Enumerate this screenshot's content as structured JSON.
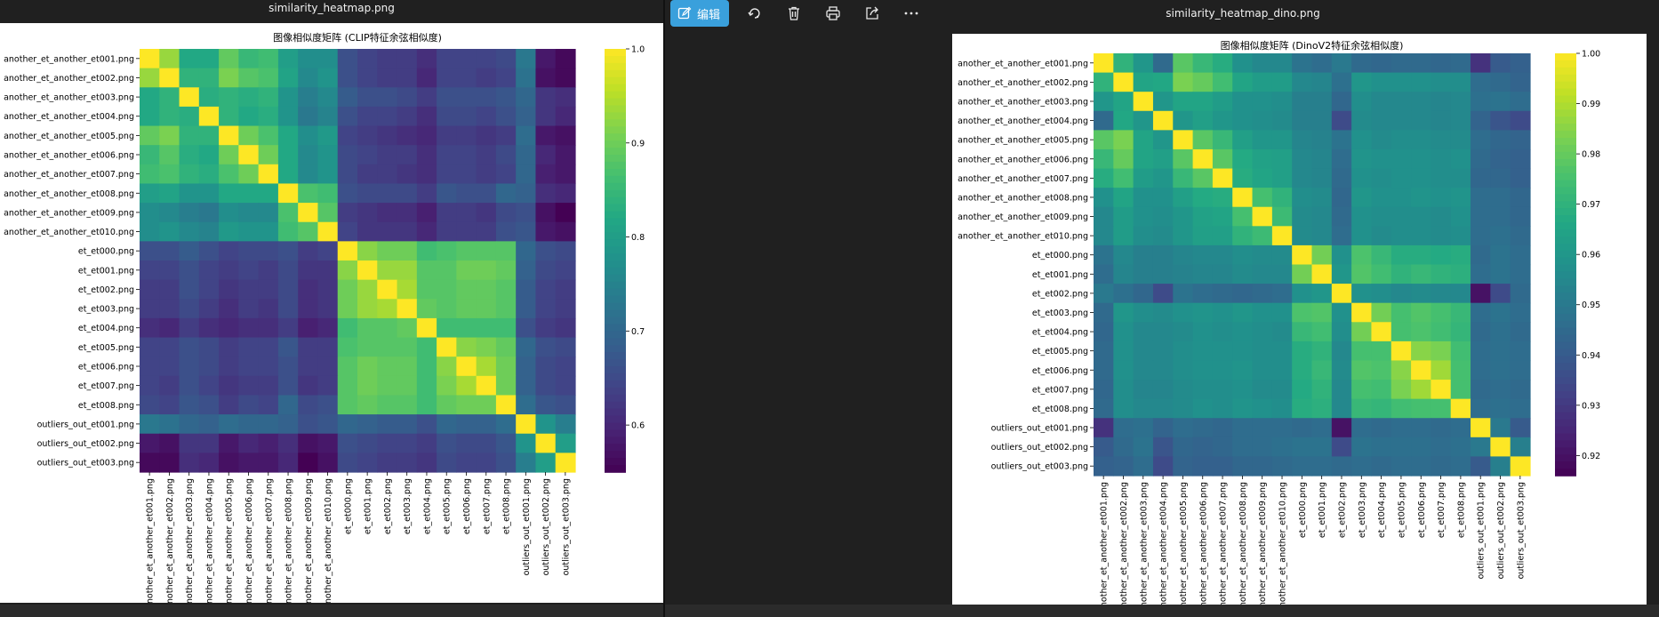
{
  "left_window": {
    "file_name": "similarity_heatmap.png"
  },
  "right_window": {
    "file_name": "similarity_heatmap_dino.png"
  },
  "toolbar": {
    "edit_label": "编辑",
    "icons": [
      "edit-icon",
      "rotate-icon",
      "trash-icon",
      "print-icon",
      "share-icon",
      "more-icon"
    ]
  },
  "labels": [
    "another_et_another_et001.png",
    "another_et_another_et002.png",
    "another_et_another_et003.png",
    "another_et_another_et004.png",
    "another_et_another_et005.png",
    "another_et_another_et006.png",
    "another_et_another_et007.png",
    "another_et_another_et008.png",
    "another_et_another_et009.png",
    "another_et_another_et010.png",
    "et_et000.png",
    "et_et001.png",
    "et_et002.png",
    "et_et003.png",
    "et_et004.png",
    "et_et005.png",
    "et_et006.png",
    "et_et007.png",
    "et_et008.png",
    "outliers_out_et001.png",
    "outliers_out_et002.png",
    "outliers_out_et003.png"
  ],
  "chart_data": [
    {
      "type": "heatmap",
      "title": "图像相似度矩阵 (CLIP特征余弦相似度)",
      "colorscale": "viridis",
      "vmin": 0.55,
      "vmax": 1.0,
      "colorbar_ticks": [
        "0.6",
        "0.7",
        "0.8",
        "0.9",
        "1.0"
      ],
      "colorbar_tick_values": [
        0.6,
        0.7,
        0.8,
        0.9,
        1.0
      ],
      "values": [
        [
          1.0,
          0.93,
          0.82,
          0.82,
          0.89,
          0.85,
          0.86,
          0.8,
          0.77,
          0.77,
          0.66,
          0.64,
          0.63,
          0.63,
          0.61,
          0.64,
          0.64,
          0.64,
          0.65,
          0.73,
          0.58,
          0.56
        ],
        [
          0.93,
          1.0,
          0.84,
          0.84,
          0.91,
          0.88,
          0.87,
          0.81,
          0.76,
          0.78,
          0.66,
          0.64,
          0.63,
          0.63,
          0.6,
          0.64,
          0.64,
          0.63,
          0.64,
          0.72,
          0.57,
          0.56
        ],
        [
          0.82,
          0.84,
          1.0,
          0.83,
          0.84,
          0.83,
          0.84,
          0.78,
          0.74,
          0.76,
          0.68,
          0.66,
          0.66,
          0.65,
          0.63,
          0.66,
          0.66,
          0.66,
          0.67,
          0.7,
          0.62,
          0.61
        ],
        [
          0.82,
          0.84,
          0.83,
          1.0,
          0.84,
          0.82,
          0.83,
          0.78,
          0.73,
          0.75,
          0.66,
          0.64,
          0.64,
          0.63,
          0.61,
          0.65,
          0.65,
          0.64,
          0.66,
          0.69,
          0.62,
          0.6
        ],
        [
          0.89,
          0.91,
          0.84,
          0.84,
          1.0,
          0.9,
          0.87,
          0.82,
          0.77,
          0.79,
          0.64,
          0.63,
          0.62,
          0.61,
          0.6,
          0.63,
          0.63,
          0.62,
          0.63,
          0.71,
          0.58,
          0.57
        ],
        [
          0.85,
          0.88,
          0.83,
          0.82,
          0.9,
          1.0,
          0.9,
          0.82,
          0.76,
          0.78,
          0.65,
          0.64,
          0.63,
          0.63,
          0.61,
          0.64,
          0.64,
          0.63,
          0.65,
          0.7,
          0.6,
          0.58
        ],
        [
          0.86,
          0.87,
          0.84,
          0.83,
          0.87,
          0.9,
          1.0,
          0.82,
          0.76,
          0.78,
          0.65,
          0.63,
          0.63,
          0.62,
          0.61,
          0.64,
          0.64,
          0.63,
          0.64,
          0.7,
          0.59,
          0.58
        ],
        [
          0.8,
          0.81,
          0.78,
          0.78,
          0.82,
          0.82,
          0.82,
          1.0,
          0.87,
          0.86,
          0.66,
          0.65,
          0.65,
          0.65,
          0.63,
          0.67,
          0.66,
          0.66,
          0.7,
          0.69,
          0.61,
          0.6
        ],
        [
          0.77,
          0.76,
          0.74,
          0.73,
          0.77,
          0.76,
          0.76,
          0.87,
          1.0,
          0.88,
          0.63,
          0.62,
          0.61,
          0.61,
          0.59,
          0.63,
          0.63,
          0.62,
          0.65,
          0.66,
          0.57,
          0.55
        ],
        [
          0.77,
          0.78,
          0.76,
          0.75,
          0.79,
          0.78,
          0.78,
          0.86,
          0.88,
          1.0,
          0.64,
          0.62,
          0.62,
          0.62,
          0.6,
          0.63,
          0.63,
          0.63,
          0.66,
          0.67,
          0.58,
          0.57
        ],
        [
          0.66,
          0.66,
          0.68,
          0.66,
          0.64,
          0.65,
          0.65,
          0.66,
          0.63,
          0.64,
          1.0,
          0.92,
          0.9,
          0.9,
          0.86,
          0.87,
          0.88,
          0.88,
          0.88,
          0.7,
          0.66,
          0.65
        ],
        [
          0.64,
          0.64,
          0.66,
          0.64,
          0.63,
          0.64,
          0.63,
          0.65,
          0.62,
          0.62,
          0.92,
          1.0,
          0.93,
          0.93,
          0.88,
          0.88,
          0.9,
          0.9,
          0.89,
          0.69,
          0.65,
          0.64
        ],
        [
          0.63,
          0.63,
          0.66,
          0.64,
          0.62,
          0.63,
          0.63,
          0.65,
          0.61,
          0.62,
          0.9,
          0.93,
          1.0,
          0.94,
          0.88,
          0.88,
          0.89,
          0.89,
          0.88,
          0.68,
          0.64,
          0.63
        ],
        [
          0.63,
          0.63,
          0.65,
          0.63,
          0.61,
          0.63,
          0.62,
          0.65,
          0.61,
          0.62,
          0.9,
          0.93,
          0.94,
          1.0,
          0.89,
          0.88,
          0.89,
          0.89,
          0.88,
          0.68,
          0.64,
          0.63
        ],
        [
          0.61,
          0.6,
          0.63,
          0.61,
          0.6,
          0.61,
          0.61,
          0.63,
          0.59,
          0.6,
          0.86,
          0.88,
          0.88,
          0.89,
          1.0,
          0.86,
          0.86,
          0.86,
          0.86,
          0.66,
          0.63,
          0.62
        ],
        [
          0.64,
          0.64,
          0.66,
          0.65,
          0.63,
          0.64,
          0.64,
          0.67,
          0.63,
          0.63,
          0.87,
          0.88,
          0.88,
          0.88,
          0.86,
          1.0,
          0.92,
          0.91,
          0.89,
          0.7,
          0.66,
          0.65
        ],
        [
          0.64,
          0.64,
          0.66,
          0.65,
          0.63,
          0.64,
          0.64,
          0.66,
          0.63,
          0.63,
          0.88,
          0.9,
          0.89,
          0.89,
          0.86,
          0.92,
          1.0,
          0.94,
          0.9,
          0.69,
          0.65,
          0.64
        ],
        [
          0.64,
          0.63,
          0.66,
          0.64,
          0.62,
          0.63,
          0.63,
          0.66,
          0.62,
          0.63,
          0.88,
          0.9,
          0.89,
          0.89,
          0.86,
          0.91,
          0.94,
          1.0,
          0.9,
          0.69,
          0.65,
          0.64
        ],
        [
          0.65,
          0.64,
          0.67,
          0.66,
          0.63,
          0.65,
          0.64,
          0.7,
          0.65,
          0.66,
          0.88,
          0.89,
          0.88,
          0.88,
          0.86,
          0.89,
          0.9,
          0.9,
          1.0,
          0.71,
          0.67,
          0.66
        ],
        [
          0.73,
          0.72,
          0.7,
          0.69,
          0.71,
          0.7,
          0.7,
          0.69,
          0.66,
          0.67,
          0.7,
          0.69,
          0.68,
          0.68,
          0.66,
          0.7,
          0.69,
          0.69,
          0.71,
          1.0,
          0.78,
          0.74
        ],
        [
          0.58,
          0.57,
          0.62,
          0.62,
          0.58,
          0.6,
          0.59,
          0.61,
          0.57,
          0.58,
          0.66,
          0.65,
          0.64,
          0.64,
          0.63,
          0.66,
          0.65,
          0.65,
          0.67,
          0.78,
          1.0,
          0.8
        ],
        [
          0.56,
          0.56,
          0.61,
          0.6,
          0.57,
          0.58,
          0.58,
          0.6,
          0.55,
          0.57,
          0.65,
          0.64,
          0.63,
          0.63,
          0.62,
          0.65,
          0.64,
          0.64,
          0.66,
          0.74,
          0.8,
          1.0
        ]
      ]
    },
    {
      "type": "heatmap",
      "title": "图像相似度矩阵 (DinoV2特征余弦相似度)",
      "colorscale": "viridis",
      "vmin": 0.916,
      "vmax": 1.0,
      "colorbar_ticks": [
        "0.92",
        "0.93",
        "0.94",
        "0.95",
        "0.96",
        "0.97",
        "0.98",
        "0.99",
        "1.00"
      ],
      "colorbar_tick_values": [
        0.92,
        0.93,
        0.94,
        0.95,
        0.96,
        0.97,
        0.98,
        0.99,
        1.0
      ],
      "values": [
        [
          1.0,
          0.97,
          0.96,
          0.945,
          0.978,
          0.972,
          0.968,
          0.958,
          0.955,
          0.955,
          0.948,
          0.946,
          0.95,
          0.945,
          0.944,
          0.945,
          0.945,
          0.944,
          0.945,
          0.928,
          0.94,
          0.942
        ],
        [
          0.97,
          1.0,
          0.965,
          0.966,
          0.983,
          0.98,
          0.974,
          0.965,
          0.962,
          0.962,
          0.955,
          0.954,
          0.947,
          0.96,
          0.958,
          0.958,
          0.958,
          0.957,
          0.957,
          0.946,
          0.945,
          0.943
        ],
        [
          0.96,
          0.965,
          1.0,
          0.96,
          0.965,
          0.965,
          0.962,
          0.958,
          0.958,
          0.957,
          0.952,
          0.952,
          0.944,
          0.957,
          0.955,
          0.955,
          0.955,
          0.954,
          0.955,
          0.947,
          0.948,
          0.946
        ],
        [
          0.945,
          0.966,
          0.96,
          1.0,
          0.96,
          0.963,
          0.96,
          0.958,
          0.957,
          0.956,
          0.952,
          0.952,
          0.935,
          0.956,
          0.955,
          0.955,
          0.955,
          0.954,
          0.955,
          0.943,
          0.938,
          0.935
        ],
        [
          0.978,
          0.983,
          0.965,
          0.96,
          1.0,
          0.978,
          0.972,
          0.963,
          0.96,
          0.96,
          0.954,
          0.953,
          0.948,
          0.958,
          0.956,
          0.957,
          0.957,
          0.956,
          0.956,
          0.946,
          0.944,
          0.943
        ],
        [
          0.972,
          0.98,
          0.965,
          0.963,
          0.978,
          1.0,
          0.978,
          0.967,
          0.964,
          0.963,
          0.955,
          0.954,
          0.946,
          0.959,
          0.958,
          0.958,
          0.958,
          0.957,
          0.958,
          0.945,
          0.943,
          0.942
        ],
        [
          0.968,
          0.974,
          0.962,
          0.96,
          0.972,
          0.978,
          1.0,
          0.968,
          0.965,
          0.963,
          0.955,
          0.954,
          0.945,
          0.958,
          0.957,
          0.958,
          0.958,
          0.957,
          0.957,
          0.944,
          0.944,
          0.942
        ],
        [
          0.958,
          0.965,
          0.958,
          0.958,
          0.963,
          0.967,
          0.968,
          1.0,
          0.975,
          0.97,
          0.957,
          0.956,
          0.944,
          0.96,
          0.958,
          0.958,
          0.959,
          0.958,
          0.959,
          0.946,
          0.946,
          0.944
        ],
        [
          0.955,
          0.962,
          0.958,
          0.957,
          0.96,
          0.964,
          0.965,
          0.975,
          1.0,
          0.973,
          0.956,
          0.955,
          0.945,
          0.958,
          0.957,
          0.957,
          0.957,
          0.956,
          0.958,
          0.946,
          0.946,
          0.944
        ],
        [
          0.955,
          0.962,
          0.957,
          0.956,
          0.96,
          0.963,
          0.963,
          0.97,
          0.973,
          1.0,
          0.956,
          0.955,
          0.946,
          0.958,
          0.956,
          0.957,
          0.957,
          0.956,
          0.957,
          0.946,
          0.947,
          0.945
        ],
        [
          0.948,
          0.955,
          0.952,
          0.952,
          0.954,
          0.955,
          0.955,
          0.957,
          0.956,
          0.956,
          1.0,
          0.982,
          0.958,
          0.976,
          0.972,
          0.968,
          0.968,
          0.967,
          0.968,
          0.945,
          0.948,
          0.946
        ],
        [
          0.946,
          0.954,
          0.952,
          0.952,
          0.953,
          0.954,
          0.954,
          0.956,
          0.955,
          0.955,
          0.982,
          1.0,
          0.96,
          0.977,
          0.974,
          0.97,
          0.972,
          0.97,
          0.969,
          0.946,
          0.948,
          0.946
        ],
        [
          0.95,
          0.947,
          0.944,
          0.935,
          0.948,
          0.946,
          0.945,
          0.944,
          0.945,
          0.946,
          0.958,
          0.96,
          1.0,
          0.958,
          0.957,
          0.955,
          0.956,
          0.955,
          0.955,
          0.92,
          0.935,
          0.945
        ],
        [
          0.945,
          0.96,
          0.957,
          0.956,
          0.958,
          0.959,
          0.958,
          0.96,
          0.958,
          0.958,
          0.976,
          0.977,
          0.958,
          1.0,
          0.982,
          0.975,
          0.977,
          0.975,
          0.972,
          0.946,
          0.948,
          0.946
        ],
        [
          0.944,
          0.958,
          0.955,
          0.955,
          0.956,
          0.958,
          0.957,
          0.958,
          0.957,
          0.956,
          0.972,
          0.974,
          0.957,
          0.982,
          1.0,
          0.975,
          0.976,
          0.974,
          0.971,
          0.945,
          0.947,
          0.945
        ],
        [
          0.945,
          0.958,
          0.955,
          0.955,
          0.957,
          0.958,
          0.958,
          0.958,
          0.957,
          0.957,
          0.968,
          0.97,
          0.955,
          0.975,
          0.975,
          1.0,
          0.985,
          0.983,
          0.974,
          0.946,
          0.947,
          0.946
        ],
        [
          0.945,
          0.958,
          0.955,
          0.955,
          0.957,
          0.958,
          0.958,
          0.959,
          0.957,
          0.957,
          0.968,
          0.972,
          0.956,
          0.977,
          0.976,
          0.985,
          1.0,
          0.988,
          0.975,
          0.946,
          0.947,
          0.946
        ],
        [
          0.944,
          0.957,
          0.954,
          0.954,
          0.956,
          0.957,
          0.957,
          0.958,
          0.956,
          0.956,
          0.967,
          0.97,
          0.955,
          0.975,
          0.974,
          0.983,
          0.988,
          1.0,
          0.975,
          0.945,
          0.946,
          0.945
        ],
        [
          0.945,
          0.957,
          0.955,
          0.955,
          0.956,
          0.958,
          0.957,
          0.959,
          0.958,
          0.957,
          0.968,
          0.969,
          0.955,
          0.972,
          0.971,
          0.974,
          0.975,
          0.975,
          1.0,
          0.946,
          0.947,
          0.946
        ],
        [
          0.928,
          0.946,
          0.947,
          0.943,
          0.946,
          0.945,
          0.944,
          0.946,
          0.946,
          0.946,
          0.945,
          0.946,
          0.92,
          0.946,
          0.945,
          0.946,
          0.946,
          0.945,
          0.946,
          1.0,
          0.95,
          0.94
        ],
        [
          0.94,
          0.945,
          0.948,
          0.938,
          0.944,
          0.943,
          0.944,
          0.946,
          0.946,
          0.947,
          0.948,
          0.948,
          0.935,
          0.948,
          0.947,
          0.947,
          0.947,
          0.946,
          0.947,
          0.95,
          1.0,
          0.952
        ],
        [
          0.942,
          0.943,
          0.946,
          0.935,
          0.943,
          0.942,
          0.942,
          0.944,
          0.944,
          0.945,
          0.946,
          0.946,
          0.945,
          0.946,
          0.945,
          0.946,
          0.946,
          0.945,
          0.946,
          0.94,
          0.952,
          1.0
        ]
      ]
    }
  ]
}
